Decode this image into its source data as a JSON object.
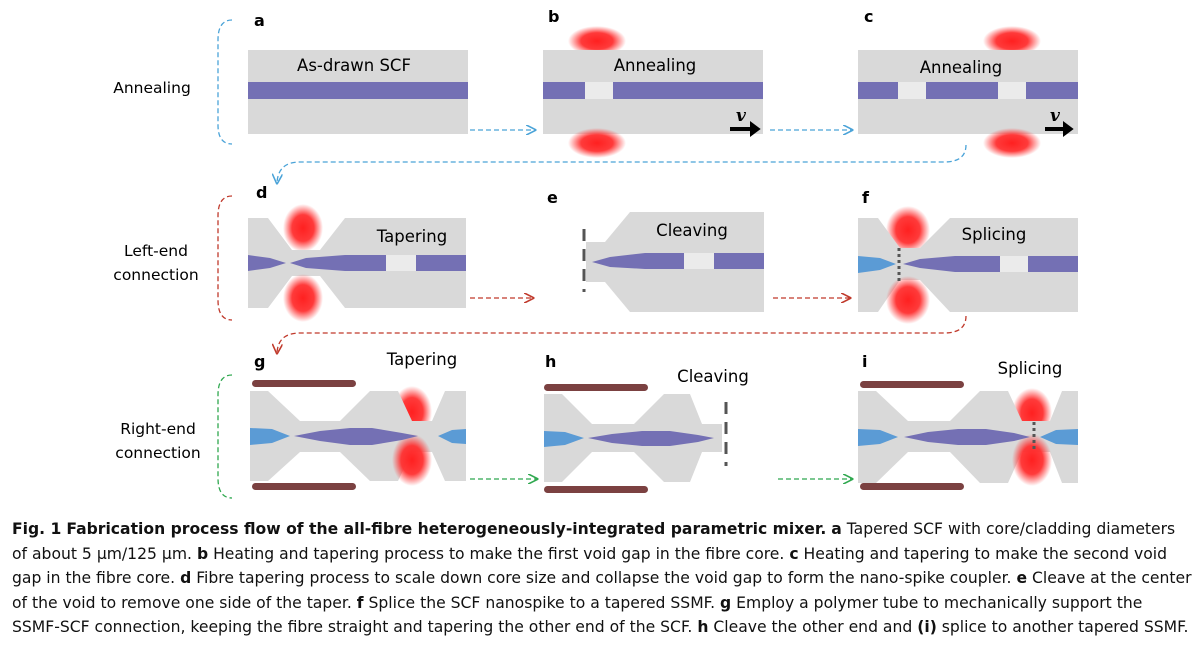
{
  "rows": [
    {
      "label_line1": "Annealing",
      "label_line2": ""
    },
    {
      "label_line1": "Left-end",
      "label_line2": "connection"
    },
    {
      "label_line1": "Right-end",
      "label_line2": "connection"
    }
  ],
  "panels": [
    {
      "letter": "a",
      "title": "As-drawn SCF"
    },
    {
      "letter": "b",
      "title": "Annealing"
    },
    {
      "letter": "c",
      "title": "Annealing"
    },
    {
      "letter": "d",
      "title": "Tapering"
    },
    {
      "letter": "e",
      "title": "Cleaving"
    },
    {
      "letter": "f",
      "title": "Splicing"
    },
    {
      "letter": "g",
      "title": "Tapering"
    },
    {
      "letter": "h",
      "title": "Cleaving"
    },
    {
      "letter": "i",
      "title": "Splicing"
    }
  ],
  "velocity_symbol": "v",
  "colors": {
    "cladding": "#d9d9d9",
    "scf_core": "#7470b4",
    "ssmf_core": "#5b9bd5",
    "heater": "#ff2a2a",
    "polymer_tube": "#7b4141",
    "flow_blue": "#4aa3d8",
    "flow_red": "#c0392b",
    "flow_green": "#2fa84f"
  },
  "caption": {
    "fig_label": "Fig. 1",
    "fig_title": "Fabrication process flow of the all-fibre heterogeneously-integrated parametric mixer.",
    "a_key": "a",
    "a_text": " Tapered SCF with core/cladding diameters of about 5 μm/125 μm. ",
    "b_key": "b",
    "b_text": " Heating and tapering process to make the first void gap in the fibre core. ",
    "c_key": "c",
    "c_text": " Heating and tapering to make the second void gap in the fibre core. ",
    "d_key": "d",
    "d_text": " Fibre tapering process to scale down core size and collapse the void gap to form the nano-spike coupler. ",
    "e_key": "e",
    "e_text": " Cleave at the center of the void to remove one side of the taper. ",
    "f_key": "f",
    "f_text": " Splice the SCF nanospike to a tapered SSMF. ",
    "g_key": "g",
    "g_text": " Employ a polymer tube to mechanically support the SSMF-SCF connection, keeping the fibre straight and tapering the other end of the SCF. ",
    "h_key": "h",
    "h_text": " Cleave the other end and ",
    "i_key": "(i)",
    "i_text": " splice to another tapered SSMF."
  }
}
